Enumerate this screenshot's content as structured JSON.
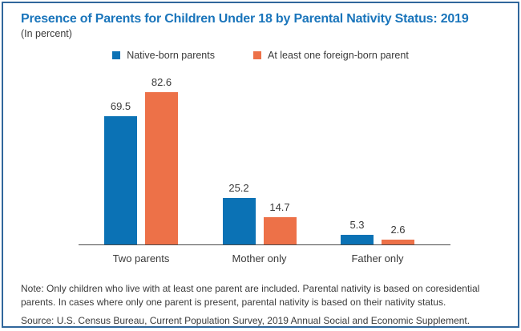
{
  "header": {
    "title": "Presence of Parents for Children Under 18 by Parental Nativity Status: 2019",
    "subtitle": "(In percent)"
  },
  "colors": {
    "title_blue": "#1a75bb",
    "native_blue": "#0b72b5",
    "foreign_orange": "#ed7148",
    "frame_border": "#30679c",
    "text": "#3a3a3a",
    "axis": "#4a4a4a"
  },
  "chart_data": {
    "type": "bar",
    "title": "Presence of Parents for Children Under 18 by Parental Nativity Status: 2019",
    "subtitle": "(In percent)",
    "categories": [
      "Two parents",
      "Mother only",
      "Father only"
    ],
    "series": [
      {
        "name": "Native-born parents",
        "color": "#0b72b5",
        "values": [
          69.5,
          25.2,
          5.3
        ]
      },
      {
        "name": "At least one foreign-born parent",
        "color": "#ed7148",
        "values": [
          82.6,
          14.7,
          2.6
        ]
      }
    ],
    "xlabel": "",
    "ylabel": "",
    "ylim": [
      0,
      90
    ],
    "grid": false,
    "legend_position": "top",
    "value_labels": true
  },
  "notes": {
    "note": "Note: Only children who live with at least one parent are included. Parental nativity is based on coresidential parents. In cases where only one parent is present, parental nativity is based on their nativity status.",
    "source": "Source: U.S. Census Bureau, Current Population Survey, 2019 Annual Social and Economic Supplement."
  }
}
